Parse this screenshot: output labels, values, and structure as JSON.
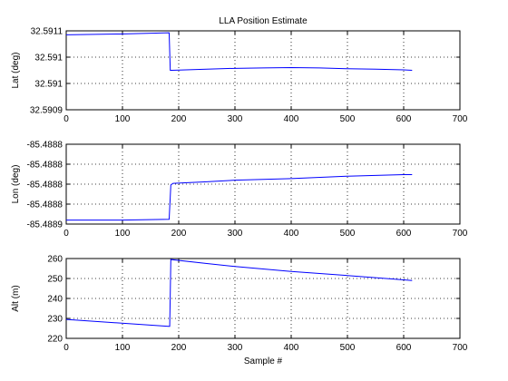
{
  "chart_data": [
    {
      "type": "line",
      "title": "LLA Position Estimate",
      "xlabel": "",
      "ylabel": "Lat (deg)",
      "xlim": [
        0,
        700
      ],
      "ylim": [
        32.5909,
        32.5911
      ],
      "x_ticks": [
        "0",
        "100",
        "200",
        "300",
        "400",
        "500",
        "600",
        "700"
      ],
      "y_ticks": [
        "32.5911",
        "32.591",
        "32.591",
        "32.5909"
      ],
      "grid": true,
      "color": "#0000ff",
      "x": [
        0,
        95,
        183,
        185,
        188,
        250,
        300,
        350,
        400,
        450,
        500,
        550,
        600,
        615
      ],
      "y": [
        32.59109,
        32.591092,
        32.591095,
        32.591,
        32.591,
        32.591003,
        32.591005,
        32.591006,
        32.591007,
        32.591006,
        32.591004,
        32.591003,
        32.591001,
        32.591
      ]
    },
    {
      "type": "line",
      "title": "",
      "xlabel": "",
      "ylabel": "Lon (deg)",
      "xlim": [
        0,
        700
      ],
      "ylim": [
        -85.48891,
        -85.48881
      ],
      "x_ticks": [
        "0",
        "100",
        "200",
        "300",
        "400",
        "500",
        "600",
        "700"
      ],
      "y_ticks": [
        "-85.4888",
        "-85.4888",
        "-85.4888",
        "-85.4888",
        "-85.4889"
      ],
      "grid": true,
      "color": "#0000ff",
      "x": [
        0,
        100,
        183,
        186,
        190,
        250,
        300,
        400,
        500,
        600,
        615
      ],
      "y": [
        -85.488905,
        -85.488905,
        -85.488904,
        -85.488861,
        -85.488859,
        -85.488857,
        -85.488855,
        -85.488853,
        -85.48885,
        -85.488848,
        -85.488848
      ]
    },
    {
      "type": "line",
      "title": "",
      "xlabel": "Sample #",
      "ylabel": "Alt (m)",
      "xlim": [
        0,
        700
      ],
      "ylim": [
        220,
        260
      ],
      "x_ticks": [
        "0",
        "100",
        "200",
        "300",
        "400",
        "500",
        "600",
        "700"
      ],
      "y_ticks": [
        "260",
        "250",
        "240",
        "230",
        "220"
      ],
      "grid": true,
      "color": "#0000ff",
      "x": [
        0,
        182,
        184,
        186,
        250,
        300,
        400,
        500,
        600,
        615
      ],
      "y": [
        229.5,
        226.0,
        226.0,
        259.5,
        257.5,
        256.0,
        253.5,
        251.5,
        249.3,
        249.0
      ]
    }
  ]
}
